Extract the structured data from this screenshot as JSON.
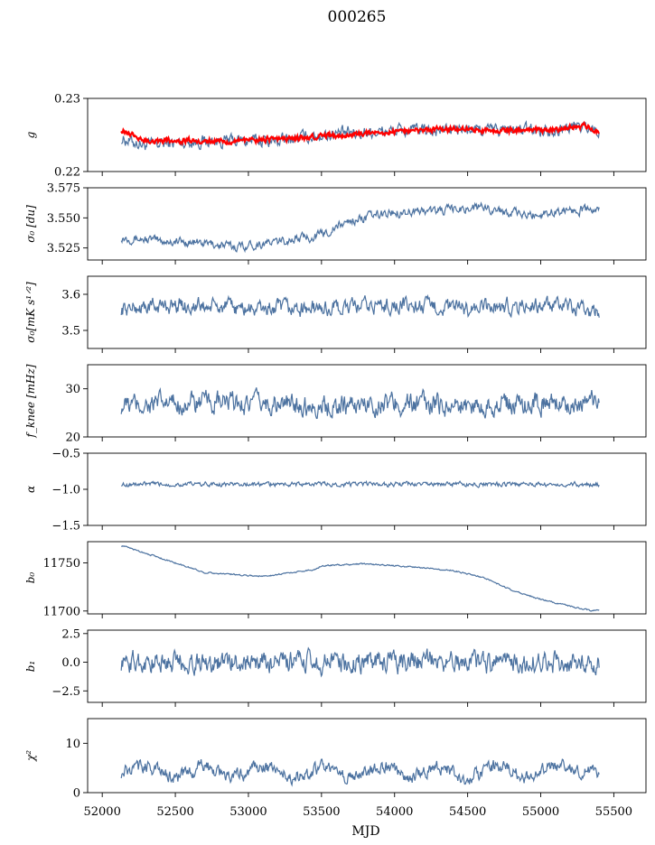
{
  "figure": {
    "title": "000265",
    "xlabel": "MJD"
  },
  "chart_data": {
    "type": "line",
    "title": "000265",
    "xlabel": "MJD",
    "xlim": [
      51900,
      55720
    ],
    "xticks": [
      52000,
      52500,
      53000,
      53500,
      54000,
      54500,
      55000,
      55500
    ],
    "x_range": [
      52130,
      55400
    ],
    "line_color": "#4c72a0",
    "overlay_color": "#ff0000",
    "grid": false,
    "panels": [
      {
        "id": "g",
        "ylabel": "g",
        "ylim": [
          0.22,
          0.23
        ],
        "yticks": [
          {
            "v": 0.22,
            "t": "0.22"
          },
          {
            "v": 0.23,
            "t": "0.23"
          }
        ],
        "series": [
          {
            "name": "",
            "color": "#4c72a0",
            "x": [
              52130,
              52300,
              52600,
              52900,
              53200,
              53500,
              53800,
              54100,
              54400,
              54700,
              55000,
              55300,
              55400
            ],
            "y": [
              0.2245,
              0.2236,
              0.2241,
              0.2242,
              0.2242,
              0.225,
              0.2254,
              0.2256,
              0.2257,
              0.2257,
              0.2257,
              0.2262,
              0.2256
            ],
            "noise": 0.0007
          },
          {
            "name": "",
            "color": "#ff0000",
            "x": [
              52130,
              52300,
              52600,
              52900,
              53200,
              53500,
              53800,
              54100,
              54400,
              54700,
              55000,
              55300,
              55400
            ],
            "y": [
              0.2258,
              0.2242,
              0.2242,
              0.2242,
              0.2244,
              0.2248,
              0.2252,
              0.2256,
              0.2258,
              0.2256,
              0.2256,
              0.2262,
              0.2254
            ],
            "noise": 0.0003
          }
        ]
      },
      {
        "id": "sigma0du",
        "ylabel": "σ₀ [du]",
        "ylim": [
          3.515,
          3.575
        ],
        "yticks": [
          {
            "v": 3.525,
            "t": "3.525"
          },
          {
            "v": 3.55,
            "t": "3.550"
          },
          {
            "v": 3.575,
            "t": "3.575"
          }
        ],
        "series": [
          {
            "name": "",
            "color": "#4c72a0",
            "x": [
              52130,
              52400,
              52700,
              52900,
              53200,
              53500,
              53700,
              54000,
              54300,
              54600,
              54900,
              55200,
              55400
            ],
            "y": [
              3.534,
              3.531,
              3.529,
              3.526,
              3.53,
              3.536,
              3.548,
              3.555,
              3.556,
              3.559,
              3.552,
              3.557,
              3.556
            ],
            "noise": 0.003
          }
        ]
      },
      {
        "id": "sigma0mk",
        "ylabel": "σ₀[mK s¹ᐟ²]",
        "ylim": [
          3.45,
          3.65
        ],
        "yticks": [
          {
            "v": 3.5,
            "t": "3.5"
          },
          {
            "v": 3.6,
            "t": "3.6"
          }
        ],
        "series": [
          {
            "name": "",
            "color": "#4c72a0",
            "x": [
              52130,
              52500,
              53000,
              53500,
              54000,
              54500,
              55000,
              55400
            ],
            "y": [
              3.56,
              3.57,
              3.56,
              3.56,
              3.57,
              3.56,
              3.57,
              3.55
            ],
            "noise": 0.018
          }
        ]
      },
      {
        "id": "fknee",
        "ylabel": "f_knee [mHz]",
        "ylim": [
          20,
          35
        ],
        "yticks": [
          {
            "v": 20,
            "t": "20"
          },
          {
            "v": 30,
            "t": "30"
          }
        ],
        "series": [
          {
            "name": "",
            "color": "#4c72a0",
            "x": [
              52130,
              52500,
              53000,
              53500,
              54000,
              54500,
              55000,
              55400
            ],
            "y": [
              26.5,
              27,
              27,
              26.5,
              27,
              26.5,
              27,
              27
            ],
            "noise": 1.8
          }
        ]
      },
      {
        "id": "alpha",
        "ylabel": "α",
        "ylim": [
          -1.5,
          -0.5
        ],
        "yticks": [
          {
            "v": -1.5,
            "t": "−1.5"
          },
          {
            "v": -1.0,
            "t": "−1.0"
          },
          {
            "v": -0.5,
            "t": "−0.5"
          }
        ],
        "series": [
          {
            "name": "",
            "color": "#4c72a0",
            "x": [
              52130,
              53000,
              54000,
              55000,
              55400
            ],
            "y": [
              -0.93,
              -0.93,
              -0.93,
              -0.93,
              -0.93
            ],
            "noise": 0.025
          }
        ]
      },
      {
        "id": "b0",
        "ylabel": "b₀",
        "ylim": [
          11697,
          11772
        ],
        "yticks": [
          {
            "v": 11700,
            "t": "11700"
          },
          {
            "v": 11750,
            "t": "11750"
          }
        ],
        "series": [
          {
            "name": "",
            "color": "#4c72a0",
            "x": [
              52130,
              52300,
              52500,
              52700,
              52900,
              53100,
              53300,
              53450,
              53500,
              53800,
              54100,
              54400,
              54600,
              54800,
              55000,
              55200,
              55350,
              55400
            ],
            "y": [
              11768,
              11760,
              11750,
              11740,
              11738,
              11736,
              11740,
              11743,
              11747,
              11749,
              11746,
              11742,
              11735,
              11722,
              11712,
              11705,
              11700,
              11701
            ],
            "noise": 0.6
          }
        ]
      },
      {
        "id": "b1",
        "ylabel": "b₁",
        "ylim": [
          -3.5,
          2.8
        ],
        "yticks": [
          {
            "v": -2.5,
            "t": "−2.5"
          },
          {
            "v": 0,
            "t": "0.0"
          },
          {
            "v": 2.5,
            "t": "2.5"
          }
        ],
        "series": [
          {
            "name": "",
            "color": "#4c72a0",
            "x": [
              52130,
              53000,
              54000,
              55000,
              55400
            ],
            "y": [
              0,
              0,
              0,
              0,
              0
            ],
            "noise": 0.75
          }
        ]
      },
      {
        "id": "chi2",
        "ylabel": "χ²",
        "ylim": [
          0,
          15
        ],
        "yticks": [
          {
            "v": 0,
            "t": "0"
          },
          {
            "v": 10,
            "t": "10"
          }
        ],
        "series": [
          {
            "name": "",
            "color": "#4c72a0",
            "x": [
              52130,
              52300,
              52500,
              52700,
              52900,
              53100,
              53300,
              53500,
              53700,
              53900,
              54100,
              54300,
              54500,
              54700,
              54900,
              55100,
              55300,
              55400
            ],
            "y": [
              4,
              5.5,
              3,
              5.5,
              3,
              5.5,
              3,
              5,
              3,
              5.5,
              3,
              5.5,
              3,
              5.5,
              3,
              5.5,
              4.5,
              4
            ],
            "noise": 1.1
          }
        ]
      }
    ]
  }
}
